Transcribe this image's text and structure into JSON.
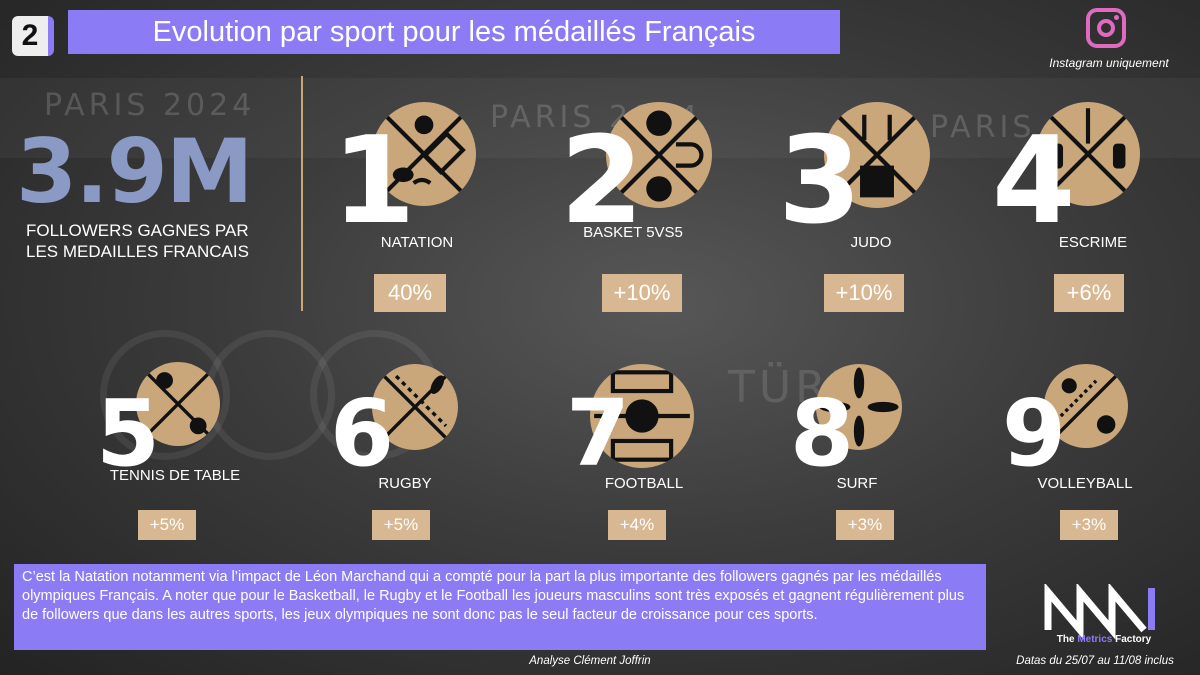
{
  "badge_number": "2",
  "title": "Evolution par sport pour les médaillés Français",
  "instagram_note": "Instagram uniquement",
  "headline": {
    "value": "3.9M",
    "label": "FOLLOWERS GAGNES PAR LES MEDAILLES FRANCAIS"
  },
  "background_text": [
    "PARIS 2024",
    "PARIS 2024",
    "PARIS 20",
    "TÜRK"
  ],
  "sports": [
    {
      "rank": "1",
      "name": "NATATION",
      "pct": "40%",
      "icon": "swimming-icon"
    },
    {
      "rank": "2",
      "name": "BASKET 5vs5",
      "pct": "+10%",
      "icon": "basketball-icon"
    },
    {
      "rank": "3",
      "name": "JUDO",
      "pct": "+10%",
      "icon": "judo-icon"
    },
    {
      "rank": "4",
      "name": "ESCRIME",
      "pct": "+6%",
      "icon": "fencing-icon"
    },
    {
      "rank": "5",
      "name": "TENNIS DE TABLE",
      "pct": "+5%",
      "icon": "table-tennis-icon"
    },
    {
      "rank": "6",
      "name": "RUGBY",
      "pct": "+5%",
      "icon": "rugby-icon"
    },
    {
      "rank": "7",
      "name": "FOOTBALL",
      "pct": "+4%",
      "icon": "football-icon"
    },
    {
      "rank": "8",
      "name": "SURF",
      "pct": "+3%",
      "icon": "surf-icon"
    },
    {
      "rank": "9",
      "name": "VOLLEYBALL",
      "pct": "+3%",
      "icon": "volleyball-icon"
    }
  ],
  "note": "C’est la Natation notamment via l’impact de Léon Marchand qui a compté pour la part la plus importante des followers gagnés par les médaillés olympiques Français. A noter que pour le Basketball, le Rugby et le Football les joueurs masculins sont très exposés et gagnent régulièrement plus de followers que dans les autres sports, les jeux olympiques ne sont donc pas le seul facteur de croissance pour ces sports.",
  "credit": "Analyse Clément Joffrin",
  "logo": {
    "prefix": "The ",
    "accent": "Metrics",
    "suffix": " Factory"
  },
  "dates": "Datas du 25/07 au 11/08 inclus",
  "colors": {
    "accent": "#8b7cf6",
    "gold": "#c9a77b",
    "pct_bg": "#d7b892",
    "stat": "#8a9ac4",
    "instagram": "#e06ac0"
  }
}
